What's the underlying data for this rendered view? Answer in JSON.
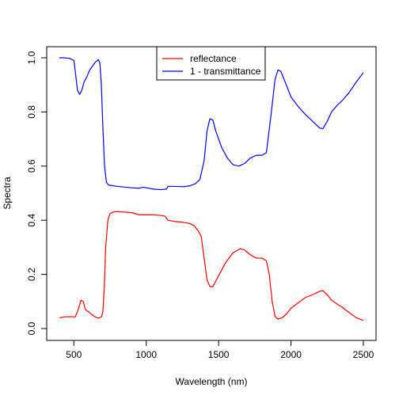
{
  "chart_data": {
    "type": "line",
    "xlabel": "Wavelength (nm)",
    "ylabel": "Spectra",
    "xlim": [
      400,
      2500
    ],
    "ylim": [
      0.0,
      1.0
    ],
    "x_ticks": [
      500,
      1000,
      1500,
      2000,
      2500
    ],
    "x_tick_labels": [
      "500",
      "1000",
      "1500",
      "2000",
      "2500"
    ],
    "y_ticks": [
      0.0,
      0.2,
      0.4,
      0.6,
      0.8,
      1.0
    ],
    "y_tick_labels": [
      "0.0",
      "0.2",
      "0.4",
      "0.6",
      "0.8",
      "1.0"
    ],
    "grid": false,
    "legend": {
      "position": "top-center"
    },
    "series": [
      {
        "name": "reflectance",
        "color": "#ff0000",
        "points": [
          [
            400,
            0.04
          ],
          [
            430,
            0.043
          ],
          [
            470,
            0.044
          ],
          [
            510,
            0.043
          ],
          [
            530,
            0.07
          ],
          [
            550,
            0.105
          ],
          [
            565,
            0.1
          ],
          [
            580,
            0.07
          ],
          [
            610,
            0.058
          ],
          [
            640,
            0.045
          ],
          [
            670,
            0.038
          ],
          [
            690,
            0.043
          ],
          [
            700,
            0.06
          ],
          [
            710,
            0.15
          ],
          [
            720,
            0.3
          ],
          [
            735,
            0.4
          ],
          [
            750,
            0.425
          ],
          [
            770,
            0.43
          ],
          [
            800,
            0.432
          ],
          [
            900,
            0.428
          ],
          [
            950,
            0.42
          ],
          [
            1000,
            0.42
          ],
          [
            1050,
            0.42
          ],
          [
            1100,
            0.418
          ],
          [
            1130,
            0.415
          ],
          [
            1150,
            0.4
          ],
          [
            1200,
            0.395
          ],
          [
            1250,
            0.393
          ],
          [
            1300,
            0.388
          ],
          [
            1330,
            0.38
          ],
          [
            1360,
            0.36
          ],
          [
            1380,
            0.34
          ],
          [
            1400,
            0.26
          ],
          [
            1420,
            0.18
          ],
          [
            1440,
            0.155
          ],
          [
            1460,
            0.155
          ],
          [
            1500,
            0.195
          ],
          [
            1550,
            0.245
          ],
          [
            1600,
            0.28
          ],
          [
            1650,
            0.295
          ],
          [
            1680,
            0.29
          ],
          [
            1720,
            0.272
          ],
          [
            1760,
            0.26
          ],
          [
            1800,
            0.26
          ],
          [
            1830,
            0.25
          ],
          [
            1850,
            0.2
          ],
          [
            1870,
            0.1
          ],
          [
            1890,
            0.045
          ],
          [
            1910,
            0.035
          ],
          [
            1940,
            0.04
          ],
          [
            1970,
            0.055
          ],
          [
            2000,
            0.075
          ],
          [
            2050,
            0.095
          ],
          [
            2100,
            0.115
          ],
          [
            2150,
            0.125
          ],
          [
            2200,
            0.138
          ],
          [
            2220,
            0.14
          ],
          [
            2250,
            0.125
          ],
          [
            2280,
            0.105
          ],
          [
            2320,
            0.09
          ],
          [
            2350,
            0.08
          ],
          [
            2400,
            0.06
          ],
          [
            2450,
            0.04
          ],
          [
            2500,
            0.03
          ]
        ]
      },
      {
        "name": "1 - transmittance",
        "color": "#0000ff",
        "points": [
          [
            400,
            1.0
          ],
          [
            430,
            1.0
          ],
          [
            470,
            0.998
          ],
          [
            500,
            0.99
          ],
          [
            510,
            0.95
          ],
          [
            525,
            0.88
          ],
          [
            540,
            0.865
          ],
          [
            555,
            0.88
          ],
          [
            570,
            0.91
          ],
          [
            590,
            0.93
          ],
          [
            610,
            0.955
          ],
          [
            630,
            0.97
          ],
          [
            650,
            0.985
          ],
          [
            670,
            0.993
          ],
          [
            680,
            0.98
          ],
          [
            690,
            0.9
          ],
          [
            700,
            0.75
          ],
          [
            712,
            0.6
          ],
          [
            725,
            0.54
          ],
          [
            740,
            0.53
          ],
          [
            800,
            0.525
          ],
          [
            900,
            0.52
          ],
          [
            950,
            0.518
          ],
          [
            980,
            0.522
          ],
          [
            1000,
            0.52
          ],
          [
            1050,
            0.515
          ],
          [
            1100,
            0.513
          ],
          [
            1140,
            0.515
          ],
          [
            1150,
            0.525
          ],
          [
            1200,
            0.525
          ],
          [
            1260,
            0.524
          ],
          [
            1300,
            0.527
          ],
          [
            1340,
            0.535
          ],
          [
            1370,
            0.55
          ],
          [
            1400,
            0.62
          ],
          [
            1420,
            0.73
          ],
          [
            1440,
            0.775
          ],
          [
            1460,
            0.77
          ],
          [
            1480,
            0.73
          ],
          [
            1520,
            0.67
          ],
          [
            1560,
            0.63
          ],
          [
            1600,
            0.605
          ],
          [
            1640,
            0.6
          ],
          [
            1680,
            0.61
          ],
          [
            1720,
            0.63
          ],
          [
            1760,
            0.64
          ],
          [
            1800,
            0.64
          ],
          [
            1830,
            0.65
          ],
          [
            1860,
            0.78
          ],
          [
            1890,
            0.92
          ],
          [
            1910,
            0.955
          ],
          [
            1930,
            0.95
          ],
          [
            1960,
            0.91
          ],
          [
            2000,
            0.855
          ],
          [
            2050,
            0.82
          ],
          [
            2100,
            0.79
          ],
          [
            2150,
            0.765
          ],
          [
            2200,
            0.74
          ],
          [
            2220,
            0.738
          ],
          [
            2250,
            0.765
          ],
          [
            2280,
            0.8
          ],
          [
            2320,
            0.825
          ],
          [
            2350,
            0.84
          ],
          [
            2400,
            0.87
          ],
          [
            2450,
            0.91
          ],
          [
            2500,
            0.945
          ]
        ]
      }
    ]
  }
}
